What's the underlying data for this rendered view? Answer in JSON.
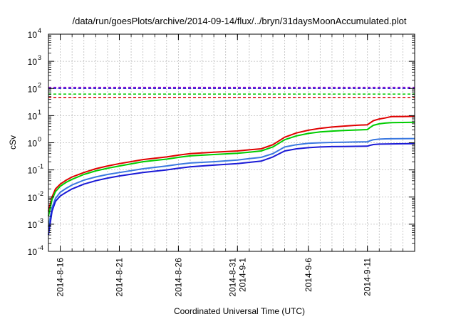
{
  "chart_data": {
    "type": "line",
    "title": "/data/run/goesPlots/archive/2014-09-14/flux/../bryn/31daysMoonAccumulated.plot",
    "xlabel": "Coordinated Universal Time (UTC)",
    "ylabel": "cSv",
    "y_scale": "log",
    "ylim": [
      0.0001,
      10000
    ],
    "xlim": [
      0,
      31
    ],
    "grid": true,
    "y_ticks": [
      {
        "base": "10",
        "exp": "-4",
        "value": 0.0001
      },
      {
        "base": "10",
        "exp": "-3",
        "value": 0.001
      },
      {
        "base": "10",
        "exp": "-2",
        "value": 0.01
      },
      {
        "base": "10",
        "exp": "-1",
        "value": 0.1
      },
      {
        "base": "10",
        "exp": "0",
        "value": 1
      },
      {
        "base": "10",
        "exp": "1",
        "value": 10
      },
      {
        "base": "10",
        "exp": "2",
        "value": 100
      },
      {
        "base": "10",
        "exp": "3",
        "value": 1000
      },
      {
        "base": "10",
        "exp": "4",
        "value": 10000
      }
    ],
    "x_ticks": [
      {
        "x": 1,
        "lines": [
          "2014-8-16"
        ]
      },
      {
        "x": 6,
        "lines": [
          "2014-8-21"
        ]
      },
      {
        "x": 11,
        "lines": [
          "2014-8-26"
        ]
      },
      {
        "x": 16,
        "lines": [
          "2014-8-31",
          "2014-9-1"
        ]
      },
      {
        "x": 22,
        "lines": [
          "2014-9-6"
        ]
      },
      {
        "x": 27,
        "lines": [
          "2014-9-11"
        ]
      }
    ],
    "minor_x_every": 1,
    "thresholds": [
      {
        "color": "#9400d3",
        "value": 110
      },
      {
        "color": "#2b2bd6",
        "value": 100
      },
      {
        "color": "#00cc00",
        "value": 62
      },
      {
        "color": "#e00000",
        "value": 47
      }
    ],
    "series": [
      {
        "color": "#e00000",
        "x": [
          0,
          0.3,
          0.6,
          1,
          1.5,
          2,
          3,
          4,
          5,
          6,
          8,
          10,
          11,
          12,
          14,
          16,
          17,
          18,
          19,
          20,
          21,
          22,
          23,
          24,
          25,
          26,
          27,
          27.2,
          27.5,
          28,
          28.5,
          29,
          30,
          31
        ],
        "y": [
          0.003,
          0.01,
          0.02,
          0.03,
          0.042,
          0.055,
          0.08,
          0.11,
          0.14,
          0.17,
          0.24,
          0.3,
          0.35,
          0.4,
          0.45,
          0.5,
          0.55,
          0.6,
          0.85,
          1.6,
          2.3,
          2.9,
          3.4,
          3.8,
          4.1,
          4.4,
          4.6,
          5.3,
          6.5,
          7.5,
          8.2,
          9.2,
          9.3,
          9.4
        ]
      },
      {
        "color": "#00cc00",
        "x": [
          0,
          0.3,
          0.6,
          1,
          1.5,
          2,
          3,
          4,
          5,
          6,
          8,
          10,
          11,
          12,
          14,
          16,
          17,
          18,
          19,
          20,
          21,
          22,
          23,
          24,
          25,
          26,
          27,
          27.2,
          27.5,
          28,
          28.5,
          29,
          30,
          31
        ],
        "y": [
          0.002,
          0.008,
          0.016,
          0.025,
          0.035,
          0.045,
          0.068,
          0.092,
          0.115,
          0.14,
          0.2,
          0.25,
          0.29,
          0.33,
          0.37,
          0.41,
          0.45,
          0.5,
          0.7,
          1.3,
          1.8,
          2.2,
          2.5,
          2.7,
          2.85,
          2.95,
          3.05,
          3.6,
          4.4,
          5.0,
          5.3,
          5.5,
          5.6,
          5.7
        ]
      },
      {
        "color": "#3a78e0",
        "x": [
          0,
          0.3,
          0.6,
          1,
          1.5,
          2,
          3,
          4,
          5,
          6,
          8,
          10,
          11,
          12,
          14,
          16,
          17,
          18,
          19,
          20,
          21,
          22,
          23,
          24,
          25,
          26,
          27,
          27.2,
          27.5,
          28,
          28.5,
          29,
          30,
          31
        ],
        "y": [
          0.0008,
          0.004,
          0.009,
          0.015,
          0.021,
          0.028,
          0.042,
          0.055,
          0.068,
          0.08,
          0.11,
          0.14,
          0.16,
          0.18,
          0.2,
          0.23,
          0.26,
          0.29,
          0.4,
          0.7,
          0.85,
          0.95,
          1.0,
          1.03,
          1.05,
          1.07,
          1.08,
          1.18,
          1.3,
          1.36,
          1.39,
          1.4,
          1.42,
          1.43
        ]
      },
      {
        "color": "#1a1ad6",
        "x": [
          0,
          0.3,
          0.6,
          1,
          1.5,
          2,
          3,
          4,
          5,
          6,
          8,
          10,
          11,
          12,
          14,
          16,
          17,
          18,
          19,
          20,
          21,
          22,
          23,
          24,
          25,
          26,
          27,
          27.2,
          27.5,
          28,
          28.5,
          29,
          30,
          31
        ],
        "y": [
          0.0004,
          0.003,
          0.007,
          0.011,
          0.015,
          0.02,
          0.03,
          0.04,
          0.05,
          0.06,
          0.08,
          0.1,
          0.115,
          0.13,
          0.15,
          0.17,
          0.19,
          0.21,
          0.3,
          0.5,
          0.6,
          0.66,
          0.7,
          0.72,
          0.73,
          0.74,
          0.75,
          0.8,
          0.86,
          0.89,
          0.9,
          0.91,
          0.92,
          0.93
        ]
      }
    ]
  }
}
